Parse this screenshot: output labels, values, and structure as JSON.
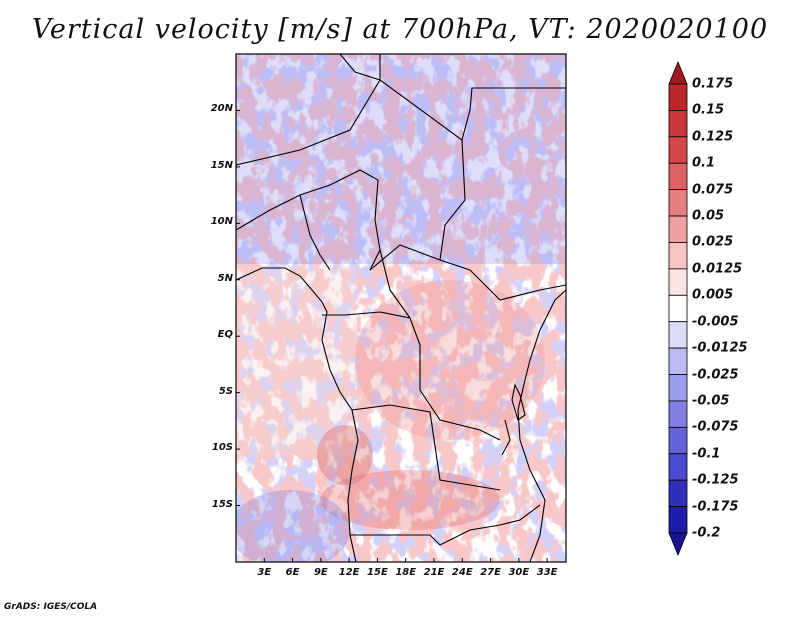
{
  "title": "Vertical velocity [m/s] at 700hPa, VT: 2020020100",
  "footer": "GrADS: IGES/COLA",
  "latitude_labels": [
    "20N",
    "15N",
    "10N",
    "5N",
    "EQ",
    "5S",
    "10S",
    "15S"
  ],
  "latitude_values": [
    20,
    15,
    10,
    5,
    0,
    -5,
    -10,
    -15
  ],
  "longitude_labels": [
    "3E",
    "6E",
    "9E",
    "12E",
    "15E",
    "18E",
    "21E",
    "24E",
    "27E",
    "30E",
    "33E"
  ],
  "longitude_values": [
    3,
    6,
    9,
    12,
    15,
    18,
    21,
    24,
    27,
    30,
    33
  ],
  "map_extent": {
    "lon_min": 0,
    "lon_max": 35,
    "lat_min": -20,
    "lat_max": 25
  },
  "colorbar_labels": [
    "0.175",
    "0.15",
    "0.125",
    "0.1",
    "0.075",
    "0.05",
    "0.025",
    "0.0125",
    "0.005",
    "-0.005",
    "-0.0125",
    "-0.025",
    "-0.05",
    "-0.075",
    "-0.1",
    "-0.125",
    "-0.175",
    "-0.2"
  ],
  "colorbar_colors": [
    "#a01820",
    "#b82828",
    "#c83838",
    "#d44848",
    "#dd6262",
    "#e67f7f",
    "#f0a0a0",
    "#f7c4c4",
    "#fde4e4",
    "#ffffff",
    "#dcdcfa",
    "#bcbcf4",
    "#9e9eee",
    "#8080e4",
    "#6464da",
    "#4a4ace",
    "#3030bc",
    "#1c1ca8",
    "#1a1490"
  ],
  "colors": {
    "positive": "#e05050",
    "negative": "#6a6ae6",
    "neutral": "#ffffff",
    "border": "#000000"
  }
}
